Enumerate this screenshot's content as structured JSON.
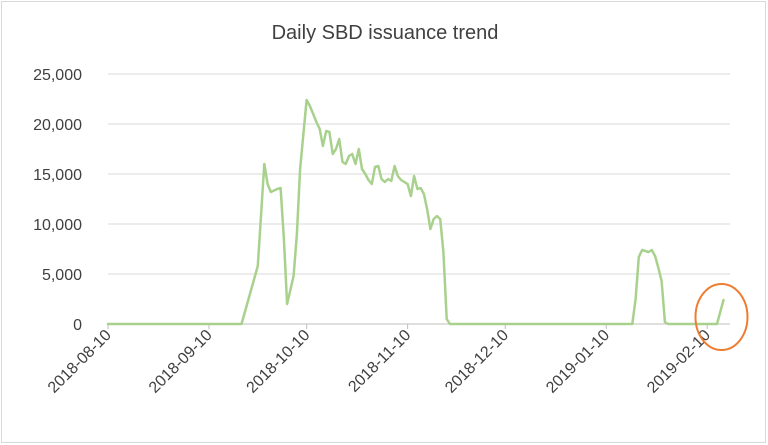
{
  "chart_data": {
    "type": "line",
    "title": "Daily SBD issuance trend",
    "xlabel": "",
    "ylabel": "",
    "ylim": [
      0,
      25000
    ],
    "yticks": [
      0,
      5000,
      10000,
      15000,
      20000,
      25000
    ],
    "ytick_labels": [
      "0",
      "5,000",
      "10,000",
      "15,000",
      "20,000",
      "25,000"
    ],
    "xlim": [
      "2018-08-10",
      "2019-02-17"
    ],
    "xtick_labels": [
      "2018-08-10",
      "2018-09-10",
      "2018-10-10",
      "2018-11-10",
      "2018-12-10",
      "2019-01-10",
      "2019-02-10"
    ],
    "grid": "horizontal",
    "legend": "none",
    "series_color": "#a9d18e",
    "series": [
      {
        "x": [
          "2018-08-10",
          "2018-09-20",
          "2018-09-25",
          "2018-09-27",
          "2018-09-28",
          "2018-09-29",
          "2018-10-01",
          "2018-10-02",
          "2018-10-03",
          "2018-10-04",
          "2018-10-06",
          "2018-10-07",
          "2018-10-08",
          "2018-10-09",
          "2018-10-10",
          "2018-10-11",
          "2018-10-12",
          "2018-10-13",
          "2018-10-14",
          "2018-10-15",
          "2018-10-16",
          "2018-10-17",
          "2018-10-18",
          "2018-10-19",
          "2018-10-20",
          "2018-10-21",
          "2018-10-22",
          "2018-10-23",
          "2018-10-24",
          "2018-10-25",
          "2018-10-26",
          "2018-10-27",
          "2018-10-28",
          "2018-10-29",
          "2018-10-30",
          "2018-10-31",
          "2018-11-01",
          "2018-11-02",
          "2018-11-03",
          "2018-11-04",
          "2018-11-05",
          "2018-11-06",
          "2018-11-07",
          "2018-11-08",
          "2018-11-09",
          "2018-11-10",
          "2018-11-11",
          "2018-11-12",
          "2018-11-13",
          "2018-11-14",
          "2018-11-15",
          "2018-11-16",
          "2018-11-17",
          "2018-11-18",
          "2018-11-19",
          "2018-11-20",
          "2018-11-21",
          "2018-11-22",
          "2018-11-23",
          "2018-11-24",
          "2018-11-25",
          "2018-11-26",
          "2018-11-27",
          "2019-01-18",
          "2019-01-19",
          "2019-01-20",
          "2019-01-21",
          "2019-01-22",
          "2019-01-23",
          "2019-01-24",
          "2019-01-25",
          "2019-01-26",
          "2019-01-27",
          "2019-01-28",
          "2019-01-29",
          "2019-01-30",
          "2019-02-13",
          "2019-02-15"
        ],
        "values": [
          0,
          0,
          5800,
          16000,
          14000,
          13200,
          13500,
          13600,
          8500,
          2000,
          4800,
          9000,
          15500,
          19000,
          22400,
          21800,
          21000,
          20200,
          19500,
          17800,
          19300,
          19200,
          17000,
          17500,
          18500,
          16200,
          16000,
          16800,
          17000,
          16000,
          17500,
          15500,
          15000,
          14400,
          14000,
          15700,
          15800,
          14500,
          14200,
          14500,
          14300,
          15800,
          14800,
          14400,
          14200,
          14000,
          12800,
          14800,
          13500,
          13600,
          13000,
          11500,
          9500,
          10500,
          10800,
          10500,
          7200,
          500,
          0,
          0,
          0,
          0,
          0,
          0,
          2500,
          6700,
          7400,
          7300,
          7200,
          7400,
          6800,
          5600,
          4300,
          200,
          0,
          0,
          0,
          2400
        ]
      }
    ]
  },
  "annotation": {
    "shape": "circle",
    "color": "#ed7d31"
  }
}
